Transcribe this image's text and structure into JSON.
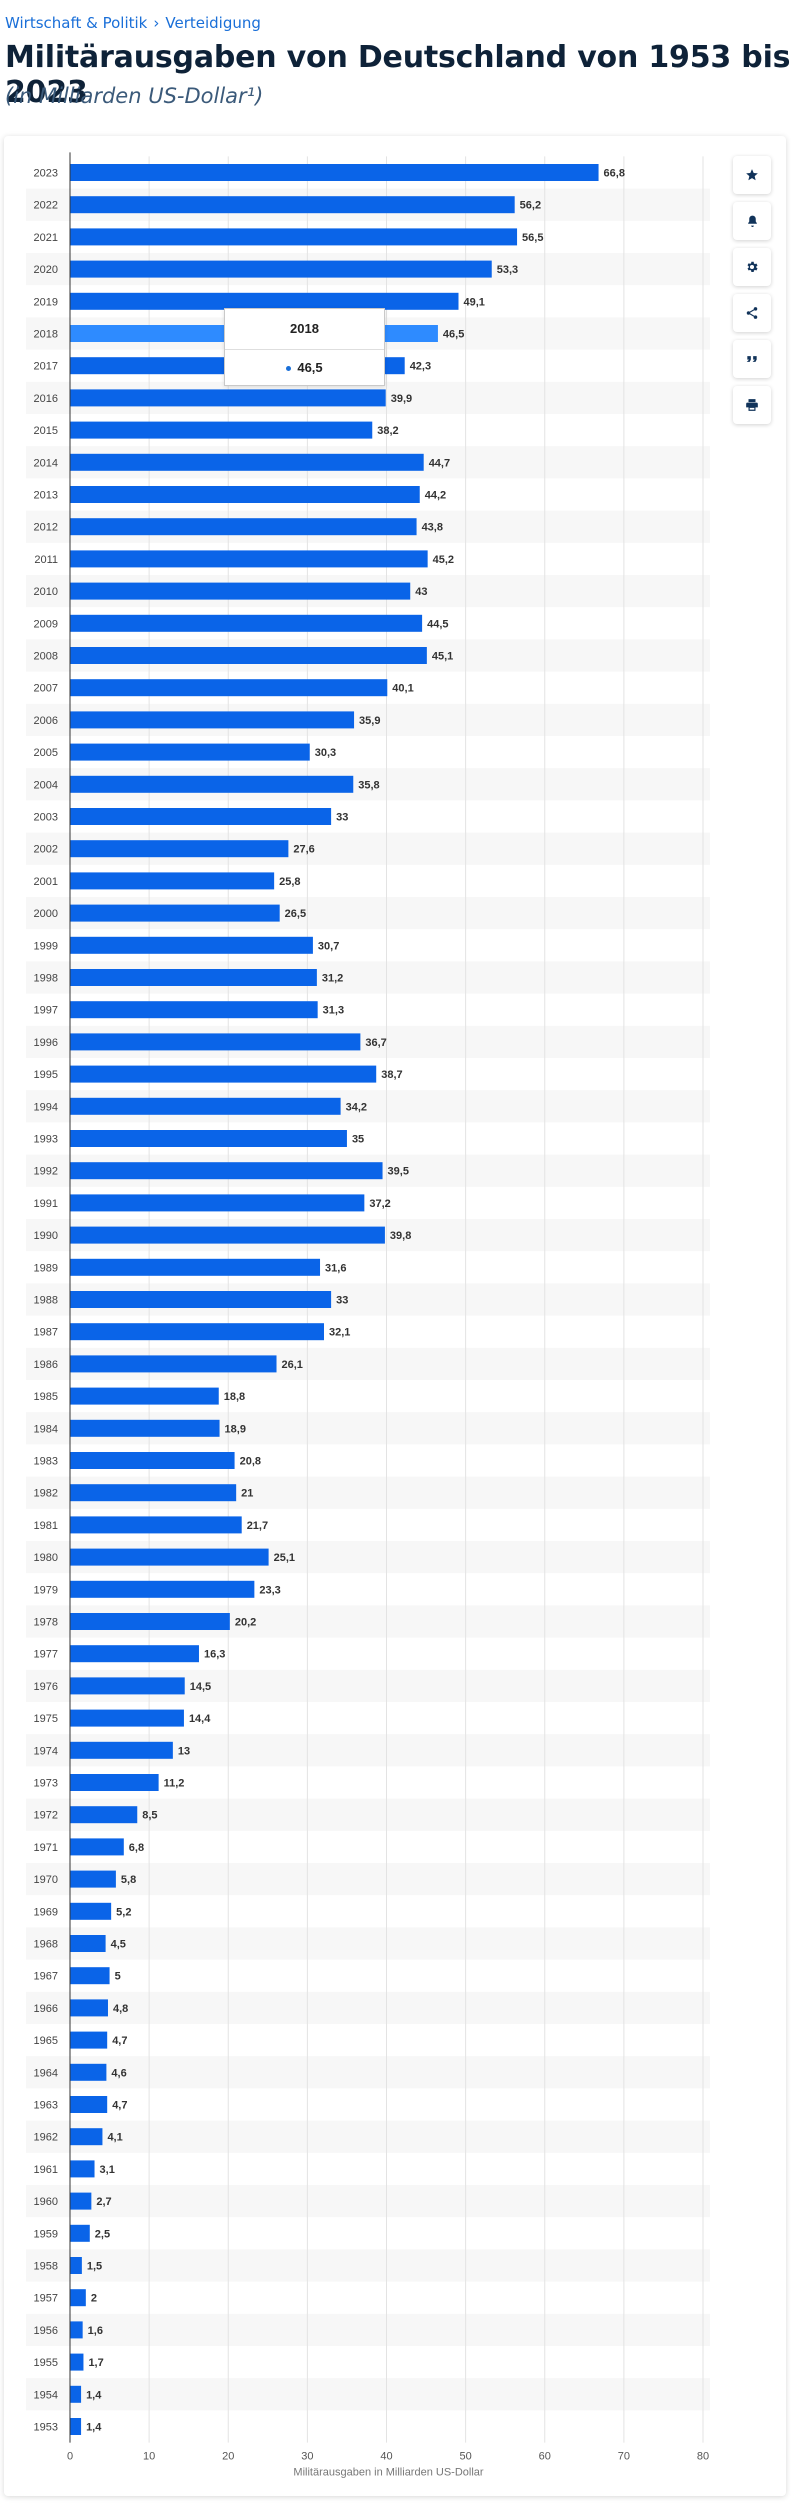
{
  "breadcrumb": {
    "items": [
      "Wirtschaft & Politik",
      "Verteidigung"
    ],
    "separator": "›"
  },
  "title": "Militärausgaben von Deutschland von 1953 bis 2023",
  "subtitle": "(in Milliarden US-Dollar¹)",
  "toolbar": {
    "icons": [
      "star-icon",
      "bell-icon",
      "gear-icon",
      "share-icon",
      "quote-icon",
      "print-icon"
    ]
  },
  "tooltip": {
    "year": "2018",
    "value": "46,5"
  },
  "colors": {
    "bar": "#0a64e8",
    "bar_highlight": "#2e8bff",
    "stripe": "#f7f7f7",
    "grid": "#e3e3e3"
  },
  "chart_data": {
    "type": "bar",
    "orientation": "horizontal",
    "categories": [
      "2023",
      "2022",
      "2021",
      "2020",
      "2019",
      "2018",
      "2017",
      "2016",
      "2015",
      "2014",
      "2013",
      "2012",
      "2011",
      "2010",
      "2009",
      "2008",
      "2007",
      "2006",
      "2005",
      "2004",
      "2003",
      "2002",
      "2001",
      "2000",
      "1999",
      "1998",
      "1997",
      "1996",
      "1995",
      "1994",
      "1993",
      "1992",
      "1991",
      "1990",
      "1989",
      "1988",
      "1987",
      "1986",
      "1985",
      "1984",
      "1983",
      "1982",
      "1981",
      "1980",
      "1979",
      "1978",
      "1977",
      "1976",
      "1975",
      "1974",
      "1973",
      "1972",
      "1971",
      "1970",
      "1969",
      "1968",
      "1967",
      "1966",
      "1965",
      "1964",
      "1963",
      "1962",
      "1961",
      "1960",
      "1959",
      "1958",
      "1957",
      "1956",
      "1955",
      "1954",
      "1953"
    ],
    "values": [
      66.8,
      56.2,
      56.5,
      53.3,
      49.1,
      46.5,
      42.3,
      39.9,
      38.2,
      44.7,
      44.2,
      43.8,
      45.2,
      43,
      44.5,
      45.1,
      40.1,
      35.9,
      30.3,
      35.8,
      33,
      27.6,
      25.8,
      26.5,
      30.7,
      31.2,
      31.3,
      36.7,
      38.7,
      34.2,
      35,
      39.5,
      37.2,
      39.8,
      31.6,
      33,
      32.1,
      26.1,
      18.8,
      18.9,
      20.8,
      21,
      21.7,
      25.1,
      23.3,
      20.2,
      16.3,
      14.5,
      14.4,
      13,
      11.2,
      8.5,
      6.8,
      5.8,
      5.2,
      4.5,
      5,
      4.8,
      4.7,
      4.6,
      4.7,
      4.1,
      3.1,
      2.7,
      2.5,
      1.5,
      2,
      1.6,
      1.7,
      1.4,
      1.4
    ],
    "data_labels": [
      "66,8",
      "56,2",
      "56,5",
      "53,3",
      "49,1",
      "46,5",
      "42,3",
      "39,9",
      "38,2",
      "44,7",
      "44,2",
      "43,8",
      "45,2",
      "43",
      "44,5",
      "45,1",
      "40,1",
      "35,9",
      "30,3",
      "35,8",
      "33",
      "27,6",
      "25,8",
      "26,5",
      "30,7",
      "31,2",
      "31,3",
      "36,7",
      "38,7",
      "34,2",
      "35",
      "39,5",
      "37,2",
      "39,8",
      "31,6",
      "33",
      "32,1",
      "26,1",
      "18,8",
      "18,9",
      "20,8",
      "21",
      "21,7",
      "25,1",
      "23,3",
      "20,2",
      "16,3",
      "14,5",
      "14,4",
      "13",
      "11,2",
      "8,5",
      "6,8",
      "5,8",
      "5,2",
      "4,5",
      "5",
      "4,8",
      "4,7",
      "4,6",
      "4,7",
      "4,1",
      "3,1",
      "2,7",
      "2,5",
      "1,5",
      "2",
      "1,6",
      "1,7",
      "1,4",
      "1,4"
    ],
    "x_ticks": [
      "0",
      "10",
      "20",
      "30",
      "40",
      "50",
      "60",
      "70",
      "80"
    ],
    "xlim": [
      0,
      80
    ],
    "xlabel": "Militärausgaben in Milliarden US-Dollar",
    "highlight": "2018",
    "grid": true
  }
}
